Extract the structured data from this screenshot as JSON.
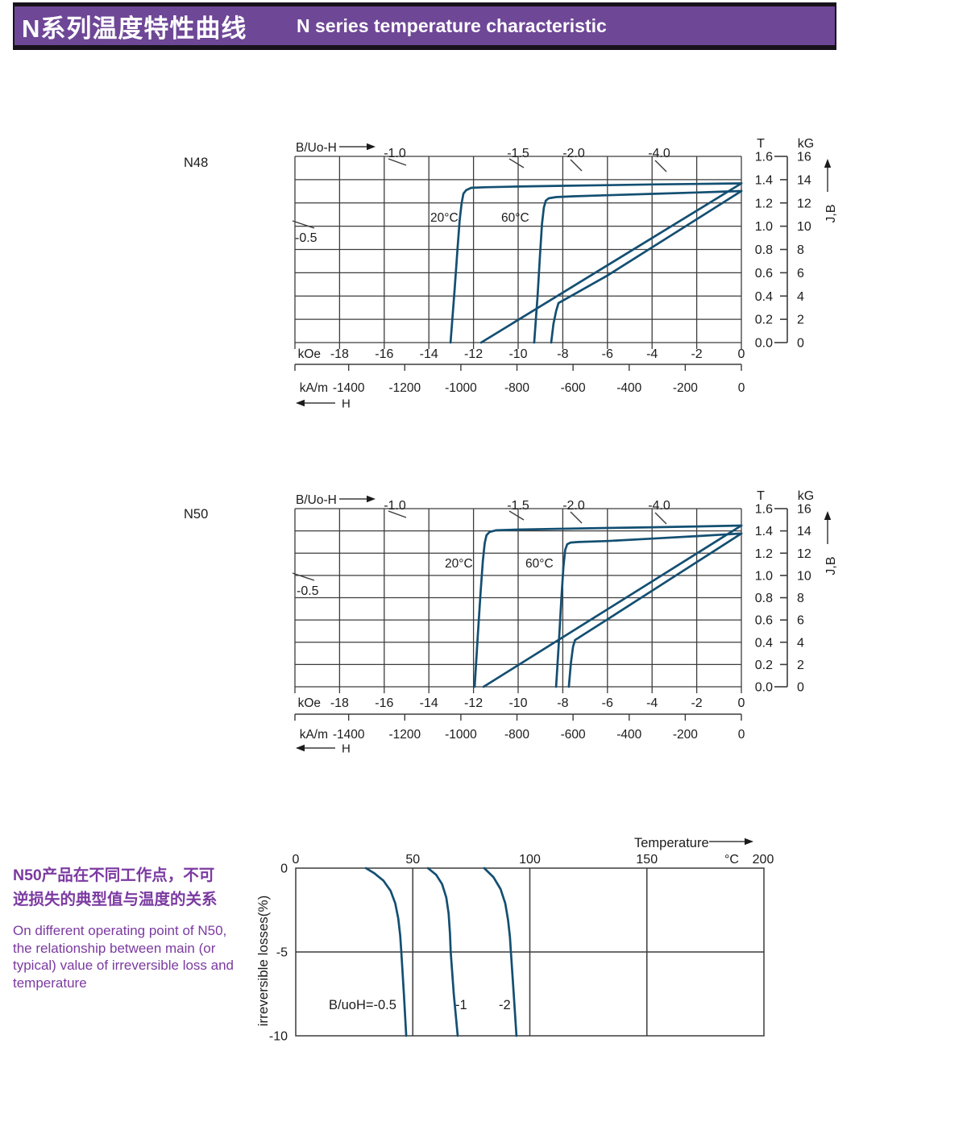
{
  "header": {
    "title_zh": "N系列温度特性曲线",
    "title_en": "N  series temperature characteristic"
  },
  "note": {
    "zh_lines": [
      "N50产品在不同工作点，不可",
      "逆损失的典型值与温度的关系"
    ],
    "en_lines": [
      "On different operating point of N50,",
      "the relationship between main (or",
      "typical) value of irreversible loss and",
      "temperature"
    ]
  },
  "colors": {
    "accent_purple": "#6e4796",
    "note_purple": "#7b3aa1",
    "curve_blue": "#134f72",
    "grid": "#3c3c3c",
    "text": "#1c1c1c"
  },
  "chart_data": [
    {
      "type": "line",
      "name": "N48",
      "x_axis_label": "B/Uo-H",
      "h_arrow_label": "H",
      "jb_label": "J,B",
      "x_unit_primary": "kOe",
      "x_unit_secondary": "kA/m",
      "y_unit_left": "T",
      "y_unit_right": "kG",
      "xlim_kOe": [
        -20,
        0
      ],
      "ylim_T": [
        0,
        1.6
      ],
      "x_ticks_kOe": [
        "-18",
        "-16",
        "-14",
        "-12",
        "-10",
        "-8",
        "-6",
        "-4",
        "-2",
        "0"
      ],
      "x_ticks_kAm": [
        "-1400",
        "-1200",
        "-1000",
        "-800",
        "-600",
        "-400",
        "-200",
        "0"
      ],
      "x_ticks_kAm_values": [
        -1400,
        -1200,
        -1000,
        -800,
        -600,
        -400,
        -200,
        0
      ],
      "y_ticks_T": [
        "1.6",
        "1.4",
        "1.2",
        "1.0",
        "0.8",
        "0.6",
        "0.4",
        "0.2",
        "0.0"
      ],
      "y_ticks_kG": [
        "16",
        "14",
        "12",
        "10",
        "8",
        "6",
        "4",
        "2",
        "0"
      ],
      "load_line_labels": [
        "-0.5",
        "-1.0",
        "-1.5",
        "-2.0",
        "-4.0"
      ],
      "temp_labels": [
        "20°C",
        "60°C"
      ],
      "series": [
        {
          "name": "J 20°C",
          "points": [
            [
              -13.03,
              0
            ],
            [
              -12.85,
              0.45
            ],
            [
              -12.72,
              0.8
            ],
            [
              -12.62,
              1.05
            ],
            [
              -12.53,
              1.2
            ],
            [
              -12.45,
              1.28
            ],
            [
              -12.33,
              1.31
            ],
            [
              -12.1,
              1.33
            ],
            [
              -11.5,
              1.335
            ],
            [
              -10,
              1.341
            ],
            [
              -8,
              1.347
            ],
            [
              -6,
              1.353
            ],
            [
              -4,
              1.359
            ],
            [
              -2,
              1.363
            ],
            [
              0,
              1.368
            ]
          ]
        },
        {
          "name": "B 20°C",
          "points": [
            [
              -11.66,
              0
            ],
            [
              0,
              1.368
            ]
          ]
        },
        {
          "name": "J 60°C",
          "points": [
            [
              -9.28,
              0
            ],
            [
              -9.13,
              0.4
            ],
            [
              -9.02,
              0.75
            ],
            [
              -8.93,
              1.02
            ],
            [
              -8.85,
              1.16
            ],
            [
              -8.76,
              1.22
            ],
            [
              -8.63,
              1.24
            ],
            [
              -8.3,
              1.25
            ],
            [
              -7.5,
              1.257
            ],
            [
              -6,
              1.266
            ],
            [
              -4,
              1.278
            ],
            [
              -2,
              1.29
            ],
            [
              0,
              1.302
            ]
          ]
        },
        {
          "name": "B 60°C",
          "points": [
            [
              -8.52,
              0
            ],
            [
              -8.42,
              0.16
            ],
            [
              -8.3,
              0.27
            ],
            [
              -8.19,
              0.34
            ],
            [
              -6,
              0.576
            ],
            [
              -4,
              0.818
            ],
            [
              -2,
              1.06
            ],
            [
              0,
              1.302
            ]
          ]
        }
      ]
    },
    {
      "type": "line",
      "name": "N50",
      "x_axis_label": "B/Uo-H",
      "h_arrow_label": "H",
      "jb_label": "J,B",
      "x_unit_primary": "kOe",
      "x_unit_secondary": "kA/m",
      "y_unit_left": "T",
      "y_unit_right": "kG",
      "xlim_kOe": [
        -20,
        0
      ],
      "ylim_T": [
        0,
        1.6
      ],
      "x_ticks_kOe": [
        "-18",
        "-16",
        "-14",
        "-12",
        "-10",
        "-8",
        "-6",
        "-4",
        "-2",
        "0"
      ],
      "x_ticks_kAm": [
        "-1400",
        "-1200",
        "-1000",
        "-800",
        "-600",
        "-400",
        "-200",
        "0"
      ],
      "x_ticks_kAm_values": [
        -1400,
        -1200,
        -1000,
        -800,
        -600,
        -400,
        -200,
        0
      ],
      "y_ticks_T": [
        "1.6",
        "1.4",
        "1.2",
        "1.0",
        "0.8",
        "0.6",
        "0.4",
        "0.2",
        "0.0"
      ],
      "y_ticks_kG": [
        "16",
        "14",
        "12",
        "10",
        "8",
        "6",
        "4",
        "2",
        "0"
      ],
      "load_line_labels": [
        "-0.5",
        "-1.0",
        "-1.5",
        "-2.0",
        "-4.0"
      ],
      "temp_labels": [
        "20°C",
        "60°C"
      ],
      "series": [
        {
          "name": "J 20°C",
          "points": [
            [
              -11.95,
              0
            ],
            [
              -11.8,
              0.48
            ],
            [
              -11.68,
              0.86
            ],
            [
              -11.58,
              1.13
            ],
            [
              -11.5,
              1.29
            ],
            [
              -11.42,
              1.36
            ],
            [
              -11.28,
              1.39
            ],
            [
              -11.0,
              1.405
            ],
            [
              -10,
              1.412
            ],
            [
              -8,
              1.419
            ],
            [
              -6,
              1.426
            ],
            [
              -4,
              1.433
            ],
            [
              -2,
              1.44
            ],
            [
              0,
              1.448
            ]
          ]
        },
        {
          "name": "B 20°C",
          "points": [
            [
              -11.55,
              0
            ],
            [
              0,
              1.448
            ]
          ]
        },
        {
          "name": "J 60°C",
          "points": [
            [
              -8.3,
              0
            ],
            [
              -8.17,
              0.42
            ],
            [
              -8.06,
              0.8
            ],
            [
              -7.97,
              1.08
            ],
            [
              -7.89,
              1.23
            ],
            [
              -7.8,
              1.28
            ],
            [
              -7.65,
              1.295
            ],
            [
              -7.3,
              1.3
            ],
            [
              -6,
              1.309
            ],
            [
              -4,
              1.331
            ],
            [
              -2,
              1.353
            ],
            [
              0,
              1.376
            ]
          ]
        },
        {
          "name": "B 60°C",
          "points": [
            [
              -7.73,
              0
            ],
            [
              -7.64,
              0.21
            ],
            [
              -7.54,
              0.36
            ],
            [
              -7.45,
              0.42
            ],
            [
              -6,
              0.605
            ],
            [
              -4,
              0.862
            ],
            [
              -2,
              1.119
            ],
            [
              0,
              1.376
            ]
          ]
        }
      ]
    },
    {
      "type": "line",
      "name": "irreversible-loss-vs-temperature",
      "title_x": "Temperature",
      "x_unit": "°C",
      "ylabel": "irreversible  losses(%)",
      "xlim": [
        0,
        200
      ],
      "ylim": [
        -10,
        0
      ],
      "x_ticks": [
        "0",
        "50",
        "100",
        "150",
        "200"
      ],
      "x_tick_values": [
        0,
        50,
        100,
        150,
        200
      ],
      "y_ticks": [
        "0",
        "-5",
        "-10"
      ],
      "y_tick_values": [
        0,
        -5,
        -10
      ],
      "series": [
        {
          "name": "B/uoH=-0.5",
          "points": [
            [
              30,
              0
            ],
            [
              33.5,
              -0.3
            ],
            [
              37.5,
              -0.75
            ],
            [
              40.5,
              -1.35
            ],
            [
              42.5,
              -2.1
            ],
            [
              43.8,
              -3.0
            ],
            [
              44.6,
              -4.0
            ],
            [
              45.1,
              -5.0
            ],
            [
              46.2,
              -7.5
            ],
            [
              47.2,
              -10
            ]
          ]
        },
        {
          "name": "-1",
          "points": [
            [
              56.5,
              0
            ],
            [
              60,
              -0.4
            ],
            [
              62.5,
              -0.95
            ],
            [
              64.3,
              -1.75
            ],
            [
              65.3,
              -2.7
            ],
            [
              65.9,
              -3.9
            ],
            [
              66.2,
              -5.0
            ],
            [
              67.5,
              -7.5
            ],
            [
              69.2,
              -10
            ]
          ]
        },
        {
          "name": "-2",
          "points": [
            [
              80.5,
              0
            ],
            [
              84.5,
              -0.55
            ],
            [
              87.5,
              -1.25
            ],
            [
              89.5,
              -2.1
            ],
            [
              90.7,
              -3.1
            ],
            [
              91.5,
              -4.1
            ],
            [
              91.9,
              -5.0
            ],
            [
              93.1,
              -7.5
            ],
            [
              94.3,
              -10
            ]
          ]
        }
      ]
    }
  ]
}
